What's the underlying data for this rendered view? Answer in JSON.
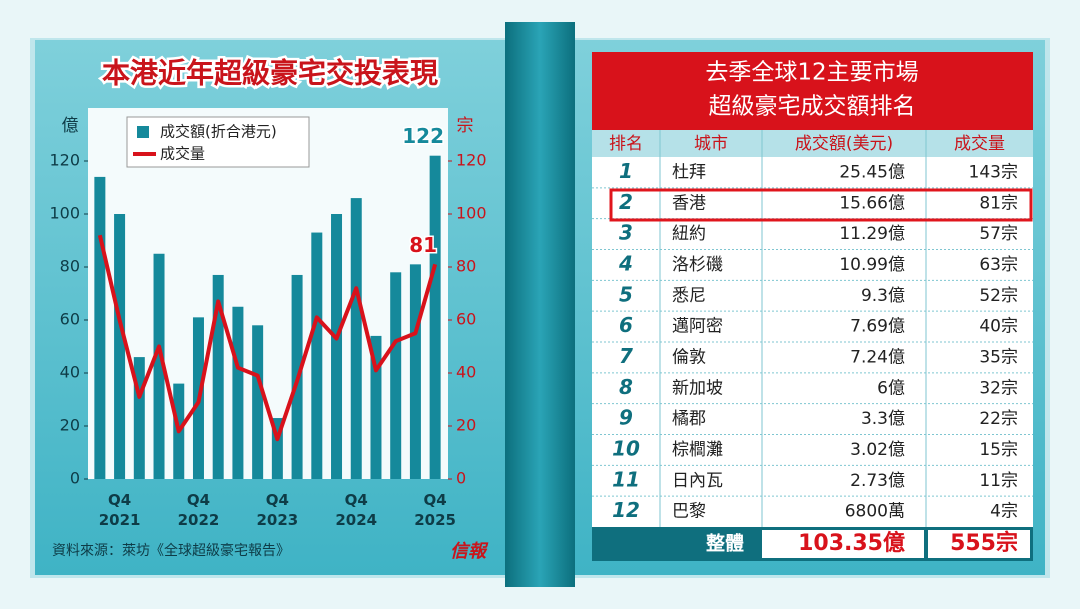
{
  "chart_data": {
    "type": "bar-line",
    "title": "本港近年超級豪宅交投表現",
    "y_label": "億",
    "y2_label": "宗",
    "categories": [
      null,
      "Q4 2021",
      null,
      null,
      null,
      "Q4 2022",
      null,
      null,
      null,
      "Q4 2023",
      null,
      null,
      null,
      "Q4 2024",
      null,
      null,
      null,
      "Q4 2025"
    ],
    "series": [
      {
        "name": "成交額(折合港元)",
        "type": "bar",
        "color": "#15899b",
        "values": [
          114,
          100,
          46,
          85,
          36,
          61,
          77,
          65,
          58,
          23,
          77,
          93,
          100,
          106,
          54,
          78,
          81,
          122
        ]
      },
      {
        "name": "成交量",
        "type": "line",
        "axis": "y2",
        "color": "#d8121b",
        "values": [
          92,
          60,
          31,
          50,
          18,
          29,
          67,
          42,
          39,
          15,
          37,
          61,
          53,
          72,
          41,
          52,
          55,
          81
        ]
      }
    ],
    "ylim": [
      0,
      140
    ],
    "yticks": [
      0,
      20,
      40,
      60,
      80,
      100,
      120
    ],
    "y2lim": [
      0,
      140
    ],
    "y2ticks": [
      0,
      20,
      40,
      60,
      80,
      100,
      120
    ],
    "source": "資料來源：萊坊《全球超級豪宅報告》",
    "logo": "信報"
  },
  "table": {
    "title": [
      "去季全球12主要市場",
      "超級豪宅成交額排名"
    ],
    "header": [
      "排名",
      "城市",
      "成交額(美元)",
      "成交量"
    ],
    "rows": [
      [
        "1",
        "杜拜",
        "25.45億",
        "143宗"
      ],
      [
        "2",
        "香港",
        "15.66億",
        "81宗"
      ],
      [
        "3",
        "紐約",
        "11.29億",
        "57宗"
      ],
      [
        "4",
        "洛杉磯",
        "10.99億",
        "63宗"
      ],
      [
        "5",
        "悉尼",
        "9.3億",
        "52宗"
      ],
      [
        "6",
        "邁阿密",
        "7.69億",
        "40宗"
      ],
      [
        "7",
        "倫敦",
        "7.24億",
        "35宗"
      ],
      [
        "8",
        "新加坡",
        "6億",
        "32宗"
      ],
      [
        "9",
        "橘郡",
        "3.3億",
        "22宗"
      ],
      [
        "10",
        "棕櫚灘",
        "3.02億",
        "15宗"
      ],
      [
        "11",
        "日內瓦",
        "2.73億",
        "11宗"
      ],
      [
        "12",
        "巴黎",
        "6800萬",
        "4宗"
      ]
    ],
    "total": [
      "整體",
      "103.35億",
      "555宗"
    ]
  }
}
